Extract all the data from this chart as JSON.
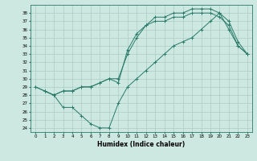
{
  "title": "",
  "xlabel": "Humidex (Indice chaleur)",
  "xlim": [
    -0.5,
    23.5
  ],
  "ylim": [
    23.5,
    39.0
  ],
  "bg_color": "#cce8e0",
  "line_color": "#2a7a6a",
  "grid_color": "#aaccc4",
  "xticks": [
    0,
    1,
    2,
    3,
    4,
    5,
    6,
    7,
    8,
    9,
    10,
    11,
    12,
    13,
    14,
    15,
    16,
    17,
    18,
    19,
    20,
    21,
    22,
    23
  ],
  "yticks": [
    24,
    25,
    26,
    27,
    28,
    29,
    30,
    31,
    32,
    33,
    34,
    35,
    36,
    37,
    38
  ],
  "line1_x": [
    0,
    1,
    2,
    3,
    4,
    5,
    6,
    7,
    8,
    9,
    10,
    11,
    12,
    13,
    14,
    15,
    16,
    17,
    18,
    19,
    20,
    21,
    22,
    23
  ],
  "line1_y": [
    29.0,
    28.5,
    28.0,
    28.5,
    28.5,
    29.0,
    29.0,
    29.5,
    30.0,
    30.0,
    33.0,
    35.0,
    36.5,
    37.0,
    37.0,
    37.5,
    37.5,
    38.0,
    38.0,
    38.0,
    37.5,
    36.5,
    34.0,
    33.0
  ],
  "line2_x": [
    0,
    1,
    2,
    3,
    4,
    5,
    6,
    7,
    8,
    9,
    10,
    11,
    12,
    13,
    14,
    15,
    16,
    17,
    18,
    19,
    20,
    21,
    22,
    23
  ],
  "line2_y": [
    29.0,
    28.5,
    28.0,
    28.5,
    28.5,
    29.0,
    29.0,
    29.5,
    30.0,
    29.5,
    33.5,
    35.5,
    36.5,
    37.5,
    37.5,
    38.0,
    38.0,
    38.5,
    38.5,
    38.5,
    38.0,
    37.0,
    34.5,
    33.0
  ],
  "line3_x": [
    1,
    2,
    3,
    4,
    5,
    6,
    7,
    8,
    9,
    10,
    11,
    12,
    13,
    14,
    15,
    16,
    17,
    18,
    19,
    20,
    21,
    22,
    23
  ],
  "line3_y": [
    28.5,
    28.0,
    26.5,
    26.5,
    25.5,
    24.5,
    24.0,
    24.0,
    27.0,
    29.0,
    30.0,
    31.0,
    32.0,
    33.0,
    34.0,
    34.5,
    35.0,
    36.0,
    37.0,
    38.0,
    36.0,
    34.0,
    33.0
  ]
}
